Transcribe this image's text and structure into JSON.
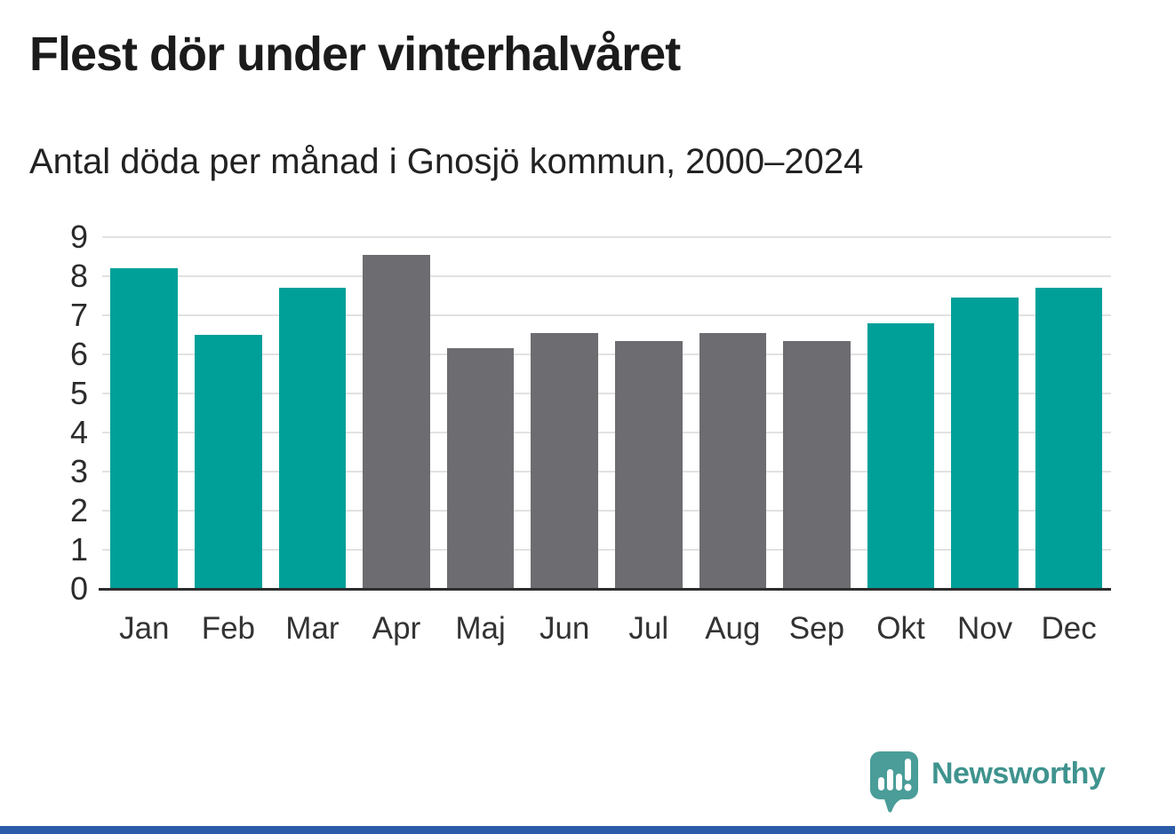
{
  "chart_data": {
    "type": "bar",
    "title": "Flest dör under vinterhalvåret",
    "subtitle": "Antal döda per månad i Gnosjö kommun, 2000–2024",
    "categories": [
      "Jan",
      "Feb",
      "Mar",
      "Apr",
      "Maj",
      "Jun",
      "Jul",
      "Aug",
      "Sep",
      "Okt",
      "Nov",
      "Dec"
    ],
    "values": [
      8.2,
      6.5,
      7.7,
      8.55,
      6.15,
      6.55,
      6.35,
      6.55,
      6.35,
      6.8,
      7.45,
      7.7
    ],
    "bar_colors": [
      "#00A099",
      "#00A099",
      "#00A099",
      "#6C6C71",
      "#6C6C71",
      "#6C6C71",
      "#6C6C71",
      "#6C6C71",
      "#6C6C71",
      "#00A099",
      "#00A099",
      "#00A099"
    ],
    "series_colors": {
      "winter_half": "#00A099",
      "summer_half": "#6C6C71"
    },
    "xlabel": "",
    "ylabel": "",
    "ylim": [
      0,
      9
    ],
    "yticks": [
      0,
      1,
      2,
      3,
      4,
      5,
      6,
      7,
      8,
      9
    ],
    "grid": "horizontal",
    "gridline_color": "#e2e2e2",
    "axis_color": "#2d2d2d",
    "legend": "none"
  },
  "branding": {
    "logo_text": "Newsworthy",
    "logo_color": "#3F938E",
    "footer_bar_color": "#2B5CA8"
  }
}
